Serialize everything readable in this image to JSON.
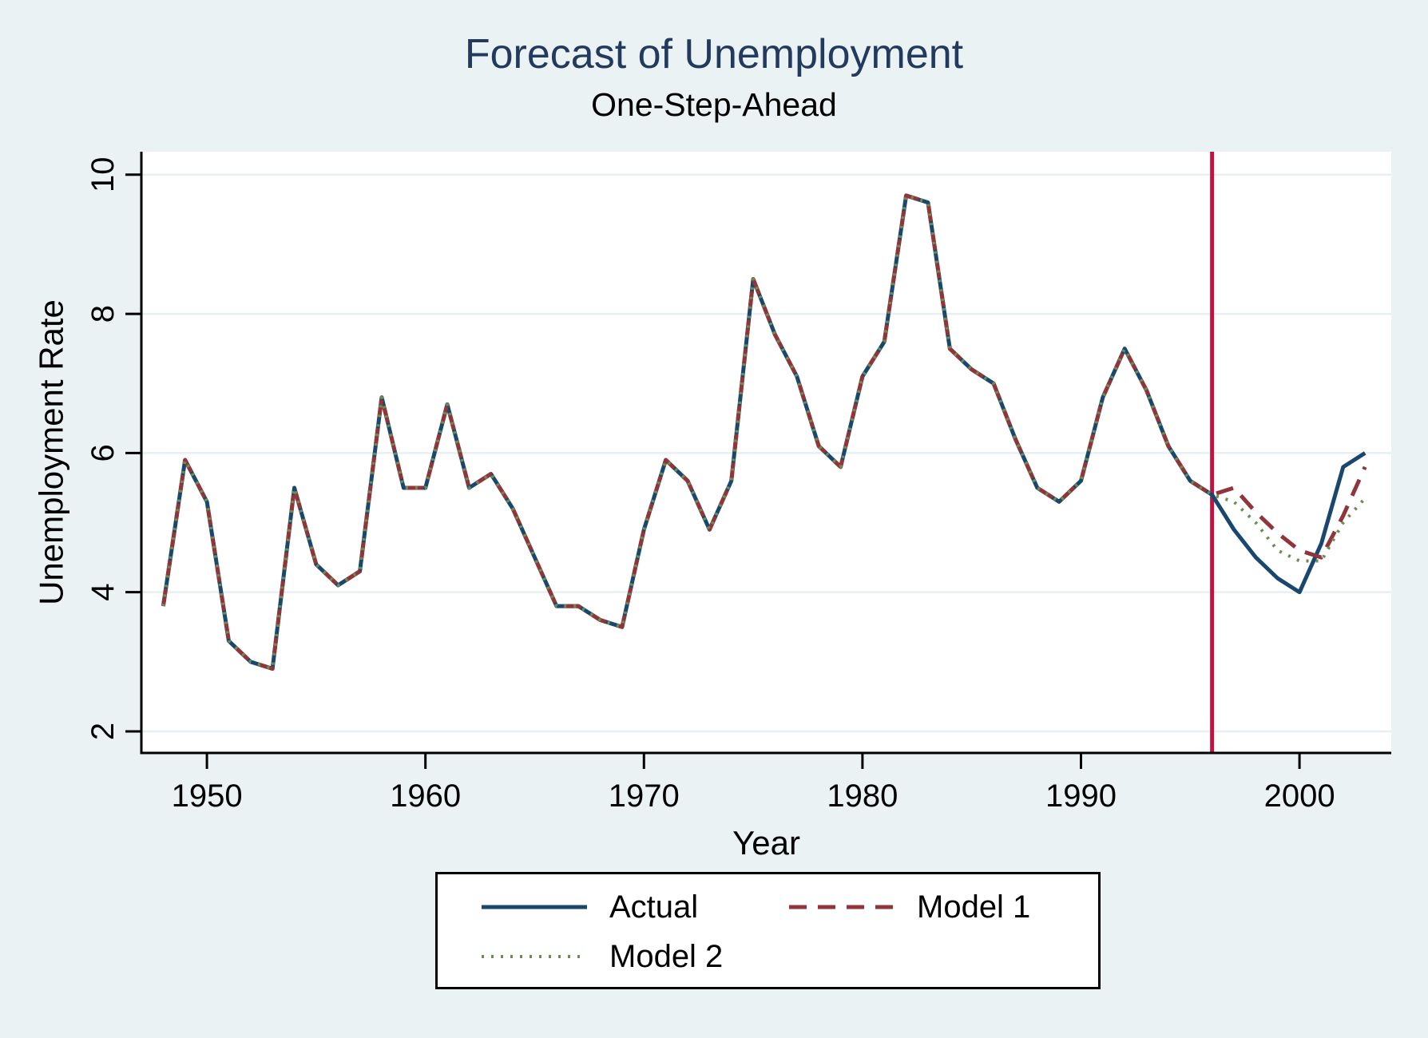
{
  "chart_data": {
    "type": "line",
    "title": "Forecast of Unemployment",
    "subtitle": "One-Step-Ahead",
    "xlabel": "Year",
    "ylabel": "Unemployment Rate",
    "xlim": [
      1947.0,
      2004.2
    ],
    "ylim": [
      1.69,
      10.33
    ],
    "xticks": [
      1950,
      1960,
      1970,
      1980,
      1990,
      2000
    ],
    "yticks": [
      2,
      4,
      6,
      8,
      10
    ],
    "grid": "horizontal",
    "background_color": "#EAF2F3",
    "plot_background_color": "#FFFFFF",
    "legend_position": "bottom-center",
    "forecast_start_line": {
      "x": 1996,
      "color": "#C41240"
    },
    "x": [
      1948,
      1949,
      1950,
      1951,
      1952,
      1953,
      1954,
      1955,
      1956,
      1957,
      1958,
      1959,
      1960,
      1961,
      1962,
      1963,
      1964,
      1965,
      1966,
      1967,
      1968,
      1969,
      1970,
      1971,
      1972,
      1973,
      1974,
      1975,
      1976,
      1977,
      1978,
      1979,
      1980,
      1981,
      1982,
      1983,
      1984,
      1985,
      1986,
      1987,
      1988,
      1989,
      1990,
      1991,
      1992,
      1993,
      1994,
      1995,
      1996,
      1997,
      1998,
      1999,
      2000,
      2001,
      2002,
      2003
    ],
    "series": [
      {
        "name": "Actual",
        "line_style": "solid",
        "color": "#1A476F",
        "values": [
          3.8,
          5.9,
          5.3,
          3.3,
          3.0,
          2.9,
          5.5,
          4.4,
          4.1,
          4.3,
          6.8,
          5.5,
          5.5,
          6.7,
          5.5,
          5.7,
          5.2,
          4.5,
          3.8,
          3.8,
          3.6,
          3.5,
          4.9,
          5.9,
          5.6,
          4.9,
          5.6,
          8.5,
          7.7,
          7.1,
          6.1,
          5.8,
          7.1,
          7.6,
          9.7,
          9.6,
          7.5,
          7.2,
          7.0,
          6.2,
          5.5,
          5.3,
          5.6,
          6.8,
          7.5,
          6.9,
          6.1,
          5.6,
          5.4,
          4.9,
          4.5,
          4.2,
          4.0,
          4.7,
          5.8,
          6.0
        ]
      },
      {
        "name": "Model 1",
        "line_style": "dash",
        "color": "#90353B",
        "values": [
          3.8,
          5.9,
          5.3,
          3.3,
          3.0,
          2.9,
          5.5,
          4.4,
          4.1,
          4.3,
          6.8,
          5.5,
          5.5,
          6.7,
          5.5,
          5.7,
          5.2,
          4.5,
          3.8,
          3.8,
          3.6,
          3.5,
          4.9,
          5.9,
          5.6,
          4.9,
          5.6,
          8.5,
          7.7,
          7.1,
          6.1,
          5.8,
          7.1,
          7.6,
          9.7,
          9.6,
          7.5,
          7.2,
          7.0,
          6.2,
          5.5,
          5.3,
          5.6,
          6.8,
          7.5,
          6.9,
          6.1,
          5.6,
          5.4,
          5.5,
          5.15,
          4.85,
          4.6,
          4.5,
          5.1,
          5.8
        ]
      },
      {
        "name": "Model 2",
        "line_style": "dot",
        "color": "#6D8C4F",
        "values": [
          3.8,
          5.9,
          5.3,
          3.3,
          3.0,
          2.9,
          5.5,
          4.4,
          4.1,
          4.3,
          6.8,
          5.5,
          5.5,
          6.7,
          5.5,
          5.7,
          5.2,
          4.5,
          3.8,
          3.8,
          3.6,
          3.5,
          4.9,
          5.9,
          5.6,
          4.9,
          5.6,
          8.5,
          7.7,
          7.1,
          6.1,
          5.8,
          7.1,
          7.6,
          9.7,
          9.6,
          7.5,
          7.2,
          7.0,
          6.2,
          5.5,
          5.3,
          5.6,
          6.8,
          7.5,
          6.9,
          6.1,
          5.6,
          5.4,
          5.3,
          5.0,
          4.6,
          4.45,
          4.45,
          5.0,
          5.35
        ]
      }
    ]
  }
}
